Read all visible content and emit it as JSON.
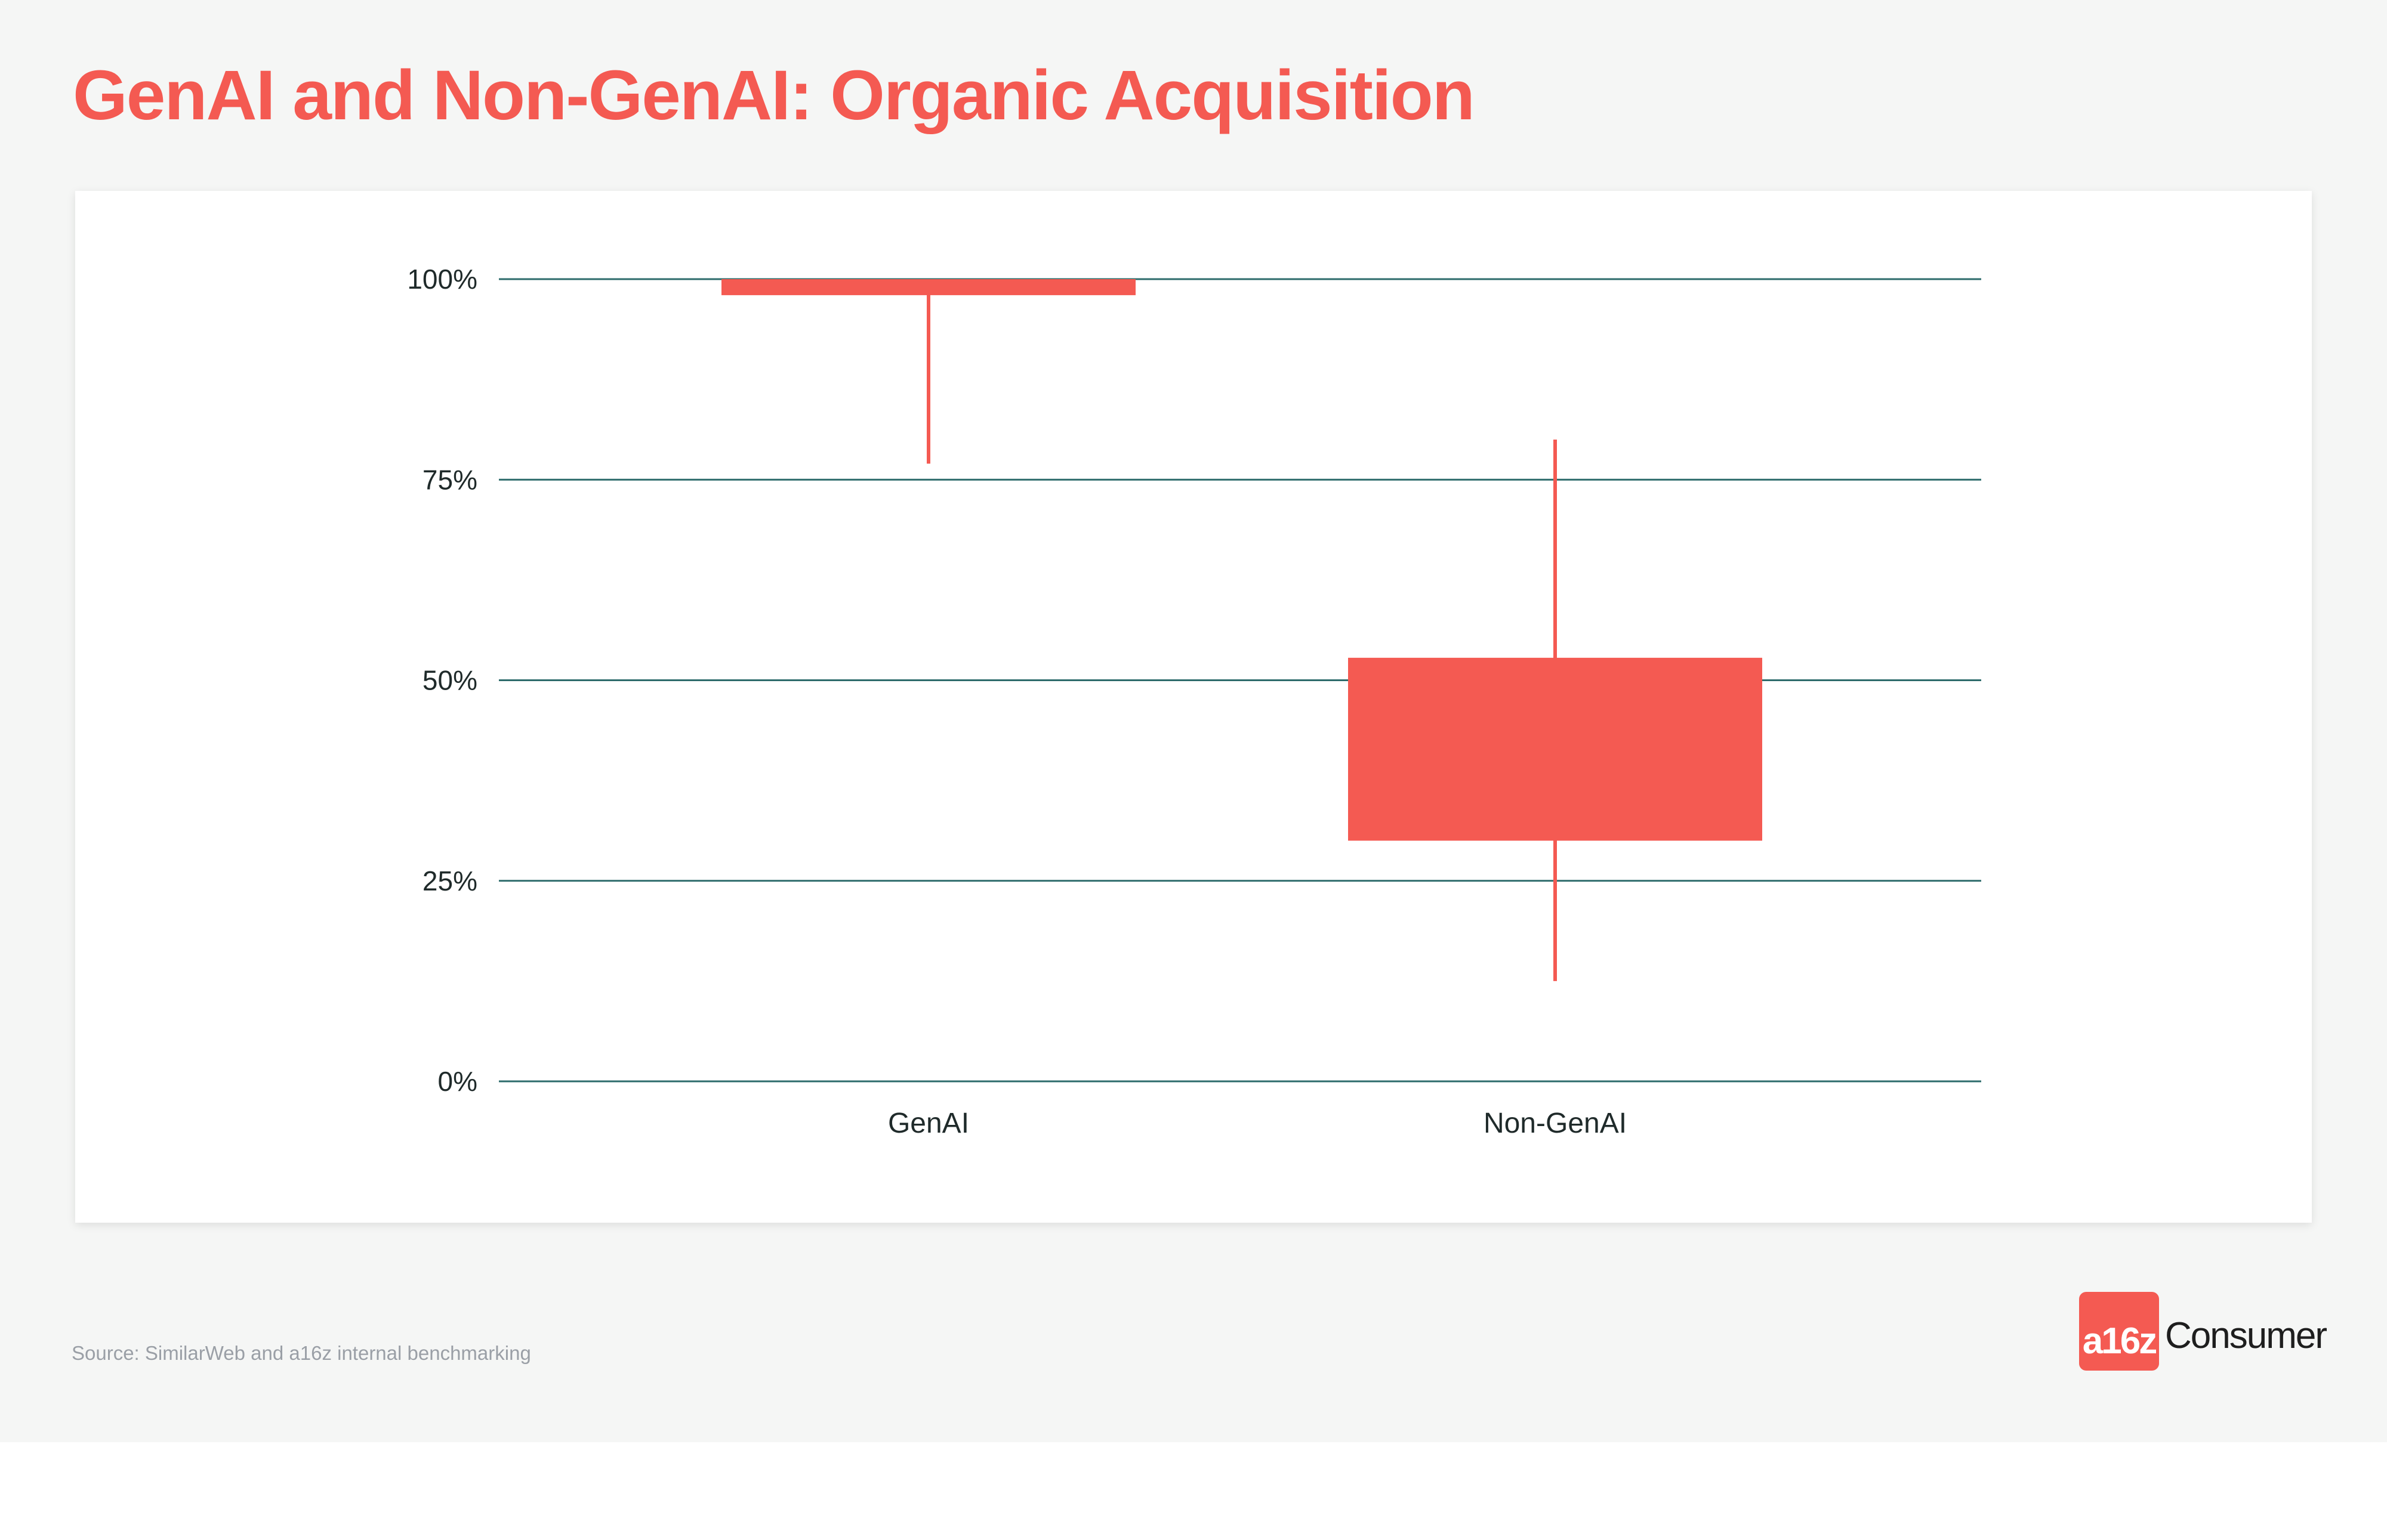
{
  "header": {
    "title": "GenAI and Non-GenAI: Organic Acquisition"
  },
  "footer": {
    "source": "Source: SimilarWeb and a16z internal benchmarking"
  },
  "branding": {
    "logo_mark": "a16z",
    "logo_word": "Consumer",
    "accent": "#f45a52"
  },
  "chart_data": {
    "type": "box",
    "title": "GenAI and Non-GenAI: Organic Acquisition",
    "xlabel": "",
    "ylabel": "",
    "ylim": [
      0,
      100
    ],
    "yticks": [
      0,
      25,
      50,
      75,
      100
    ],
    "ytick_labels": [
      "0%",
      "25%",
      "50%",
      "75%",
      "100%"
    ],
    "grid": true,
    "categories": [
      "GenAI",
      "Non-GenAI"
    ],
    "boxes": [
      {
        "category": "GenAI",
        "whisker_low": 77,
        "q1": 98,
        "q3": 100,
        "whisker_high": 100
      },
      {
        "category": "Non-GenAI",
        "whisker_low": 12.5,
        "q1": 30,
        "q3": 52.8,
        "whisker_high": 80
      }
    ],
    "colors": {
      "box": "#f45a52",
      "grid": "#2d6b6b",
      "text": "#1f2a2a"
    }
  }
}
